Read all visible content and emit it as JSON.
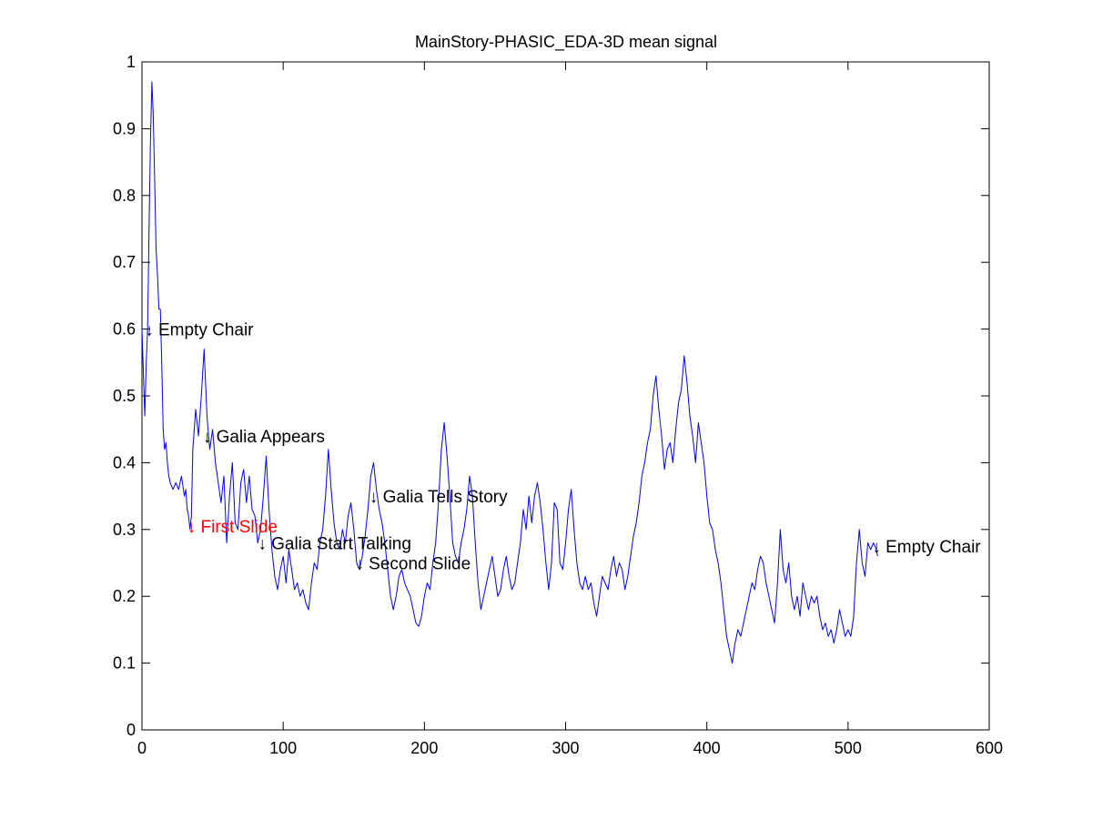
{
  "chart_data": {
    "type": "line",
    "title": "MainStory-PHASIC_EDA-3D mean signal",
    "xlabel": "",
    "ylabel": "",
    "xlim": [
      0,
      600
    ],
    "ylim": [
      0,
      1
    ],
    "xticks": [
      0,
      100,
      200,
      300,
      400,
      500,
      600
    ],
    "yticks": [
      0,
      0.1,
      0.2,
      0.3,
      0.4,
      0.5,
      0.6,
      0.7,
      0.8,
      0.9,
      1
    ],
    "xtick_labels": [
      "0",
      "100",
      "200",
      "300",
      "400",
      "500",
      "600"
    ],
    "ytick_labels": [
      "0",
      "0.1",
      "0.2",
      "0.3",
      "0.4",
      "0.5",
      "0.6",
      "0.7",
      "0.8",
      "0.9",
      "1"
    ],
    "grid": false,
    "series": [
      {
        "color": "#0000ff",
        "points": [
          [
            0,
            0.6
          ],
          [
            2,
            0.47
          ],
          [
            3,
            0.55
          ],
          [
            4,
            0.6
          ],
          [
            5,
            0.75
          ],
          [
            6,
            0.88
          ],
          [
            7,
            0.97
          ],
          [
            8,
            0.92
          ],
          [
            9,
            0.82
          ],
          [
            10,
            0.72
          ],
          [
            11,
            0.68
          ],
          [
            12,
            0.63
          ],
          [
            13,
            0.63
          ],
          [
            14,
            0.55
          ],
          [
            15,
            0.45
          ],
          [
            16,
            0.42
          ],
          [
            17,
            0.43
          ],
          [
            18,
            0.4
          ],
          [
            19,
            0.38
          ],
          [
            20,
            0.37
          ],
          [
            22,
            0.36
          ],
          [
            24,
            0.37
          ],
          [
            26,
            0.36
          ],
          [
            28,
            0.38
          ],
          [
            30,
            0.35
          ],
          [
            31,
            0.36
          ],
          [
            32,
            0.33
          ],
          [
            33,
            0.32
          ],
          [
            34,
            0.3
          ],
          [
            35,
            0.32
          ],
          [
            36,
            0.42
          ],
          [
            38,
            0.48
          ],
          [
            40,
            0.44
          ],
          [
            42,
            0.5
          ],
          [
            44,
            0.57
          ],
          [
            46,
            0.47
          ],
          [
            48,
            0.42
          ],
          [
            50,
            0.45
          ],
          [
            52,
            0.4
          ],
          [
            54,
            0.37
          ],
          [
            56,
            0.34
          ],
          [
            58,
            0.38
          ],
          [
            60,
            0.28
          ],
          [
            62,
            0.35
          ],
          [
            64,
            0.4
          ],
          [
            66,
            0.31
          ],
          [
            68,
            0.3
          ],
          [
            70,
            0.37
          ],
          [
            72,
            0.39
          ],
          [
            74,
            0.34
          ],
          [
            76,
            0.38
          ],
          [
            78,
            0.33
          ],
          [
            80,
            0.32
          ],
          [
            82,
            0.28
          ],
          [
            84,
            0.3
          ],
          [
            86,
            0.35
          ],
          [
            88,
            0.41
          ],
          [
            90,
            0.33
          ],
          [
            92,
            0.27
          ],
          [
            94,
            0.23
          ],
          [
            96,
            0.21
          ],
          [
            98,
            0.24
          ],
          [
            100,
            0.26
          ],
          [
            102,
            0.22
          ],
          [
            104,
            0.27
          ],
          [
            106,
            0.24
          ],
          [
            108,
            0.21
          ],
          [
            110,
            0.22
          ],
          [
            112,
            0.2
          ],
          [
            114,
            0.21
          ],
          [
            116,
            0.19
          ],
          [
            118,
            0.18
          ],
          [
            120,
            0.22
          ],
          [
            122,
            0.25
          ],
          [
            124,
            0.24
          ],
          [
            126,
            0.28
          ],
          [
            128,
            0.3
          ],
          [
            130,
            0.35
          ],
          [
            132,
            0.42
          ],
          [
            134,
            0.36
          ],
          [
            136,
            0.31
          ],
          [
            138,
            0.28
          ],
          [
            140,
            0.27
          ],
          [
            142,
            0.3
          ],
          [
            144,
            0.28
          ],
          [
            146,
            0.32
          ],
          [
            148,
            0.34
          ],
          [
            150,
            0.3
          ],
          [
            152,
            0.25
          ],
          [
            154,
            0.24
          ],
          [
            156,
            0.26
          ],
          [
            158,
            0.29
          ],
          [
            160,
            0.33
          ],
          [
            162,
            0.38
          ],
          [
            164,
            0.4
          ],
          [
            166,
            0.36
          ],
          [
            168,
            0.33
          ],
          [
            170,
            0.31
          ],
          [
            172,
            0.28
          ],
          [
            174,
            0.24
          ],
          [
            176,
            0.2
          ],
          [
            178,
            0.18
          ],
          [
            180,
            0.2
          ],
          [
            182,
            0.23
          ],
          [
            184,
            0.24
          ],
          [
            186,
            0.22
          ],
          [
            188,
            0.21
          ],
          [
            190,
            0.2
          ],
          [
            192,
            0.18
          ],
          [
            194,
            0.16
          ],
          [
            196,
            0.155
          ],
          [
            198,
            0.17
          ],
          [
            200,
            0.2
          ],
          [
            202,
            0.22
          ],
          [
            204,
            0.21
          ],
          [
            206,
            0.25
          ],
          [
            208,
            0.28
          ],
          [
            210,
            0.34
          ],
          [
            212,
            0.42
          ],
          [
            214,
            0.46
          ],
          [
            216,
            0.41
          ],
          [
            218,
            0.35
          ],
          [
            220,
            0.28
          ],
          [
            222,
            0.26
          ],
          [
            224,
            0.25
          ],
          [
            226,
            0.28
          ],
          [
            228,
            0.3
          ],
          [
            230,
            0.33
          ],
          [
            232,
            0.38
          ],
          [
            234,
            0.35
          ],
          [
            236,
            0.28
          ],
          [
            238,
            0.22
          ],
          [
            240,
            0.18
          ],
          [
            242,
            0.2
          ],
          [
            244,
            0.22
          ],
          [
            246,
            0.24
          ],
          [
            248,
            0.26
          ],
          [
            250,
            0.23
          ],
          [
            252,
            0.2
          ],
          [
            254,
            0.21
          ],
          [
            256,
            0.24
          ],
          [
            258,
            0.26
          ],
          [
            260,
            0.23
          ],
          [
            262,
            0.21
          ],
          [
            264,
            0.22
          ],
          [
            266,
            0.25
          ],
          [
            268,
            0.28
          ],
          [
            270,
            0.33
          ],
          [
            272,
            0.3
          ],
          [
            274,
            0.35
          ],
          [
            276,
            0.31
          ],
          [
            278,
            0.35
          ],
          [
            280,
            0.37
          ],
          [
            282,
            0.34
          ],
          [
            284,
            0.3
          ],
          [
            286,
            0.25
          ],
          [
            288,
            0.21
          ],
          [
            290,
            0.25
          ],
          [
            292,
            0.34
          ],
          [
            294,
            0.33
          ],
          [
            296,
            0.25
          ],
          [
            298,
            0.24
          ],
          [
            300,
            0.28
          ],
          [
            302,
            0.33
          ],
          [
            304,
            0.36
          ],
          [
            306,
            0.3
          ],
          [
            308,
            0.25
          ],
          [
            310,
            0.22
          ],
          [
            312,
            0.21
          ],
          [
            314,
            0.23
          ],
          [
            316,
            0.21
          ],
          [
            318,
            0.22
          ],
          [
            320,
            0.19
          ],
          [
            322,
            0.17
          ],
          [
            324,
            0.2
          ],
          [
            326,
            0.23
          ],
          [
            328,
            0.22
          ],
          [
            330,
            0.21
          ],
          [
            332,
            0.24
          ],
          [
            334,
            0.26
          ],
          [
            336,
            0.23
          ],
          [
            338,
            0.25
          ],
          [
            340,
            0.24
          ],
          [
            342,
            0.21
          ],
          [
            344,
            0.23
          ],
          [
            346,
            0.26
          ],
          [
            348,
            0.29
          ],
          [
            350,
            0.31
          ],
          [
            352,
            0.34
          ],
          [
            354,
            0.38
          ],
          [
            356,
            0.4
          ],
          [
            358,
            0.43
          ],
          [
            360,
            0.45
          ],
          [
            362,
            0.5
          ],
          [
            364,
            0.53
          ],
          [
            366,
            0.48
          ],
          [
            368,
            0.44
          ],
          [
            370,
            0.39
          ],
          [
            372,
            0.42
          ],
          [
            374,
            0.43
          ],
          [
            376,
            0.4
          ],
          [
            378,
            0.45
          ],
          [
            380,
            0.49
          ],
          [
            382,
            0.51
          ],
          [
            384,
            0.56
          ],
          [
            386,
            0.52
          ],
          [
            388,
            0.47
          ],
          [
            390,
            0.44
          ],
          [
            392,
            0.4
          ],
          [
            394,
            0.46
          ],
          [
            396,
            0.43
          ],
          [
            398,
            0.4
          ],
          [
            400,
            0.35
          ],
          [
            402,
            0.31
          ],
          [
            404,
            0.3
          ],
          [
            406,
            0.27
          ],
          [
            408,
            0.25
          ],
          [
            410,
            0.22
          ],
          [
            412,
            0.18
          ],
          [
            414,
            0.14
          ],
          [
            416,
            0.12
          ],
          [
            418,
            0.1
          ],
          [
            420,
            0.13
          ],
          [
            422,
            0.15
          ],
          [
            424,
            0.14
          ],
          [
            426,
            0.16
          ],
          [
            428,
            0.18
          ],
          [
            430,
            0.2
          ],
          [
            432,
            0.22
          ],
          [
            434,
            0.21
          ],
          [
            436,
            0.24
          ],
          [
            438,
            0.26
          ],
          [
            440,
            0.25
          ],
          [
            442,
            0.22
          ],
          [
            444,
            0.2
          ],
          [
            446,
            0.18
          ],
          [
            448,
            0.16
          ],
          [
            450,
            0.22
          ],
          [
            452,
            0.3
          ],
          [
            454,
            0.24
          ],
          [
            456,
            0.22
          ],
          [
            458,
            0.25
          ],
          [
            460,
            0.2
          ],
          [
            462,
            0.18
          ],
          [
            464,
            0.2
          ],
          [
            466,
            0.17
          ],
          [
            468,
            0.22
          ],
          [
            470,
            0.2
          ],
          [
            472,
            0.18
          ],
          [
            474,
            0.2
          ],
          [
            476,
            0.19
          ],
          [
            478,
            0.2
          ],
          [
            480,
            0.17
          ],
          [
            482,
            0.15
          ],
          [
            484,
            0.16
          ],
          [
            486,
            0.14
          ],
          [
            488,
            0.15
          ],
          [
            490,
            0.13
          ],
          [
            492,
            0.15
          ],
          [
            494,
            0.18
          ],
          [
            496,
            0.16
          ],
          [
            498,
            0.14
          ],
          [
            500,
            0.15
          ],
          [
            502,
            0.14
          ],
          [
            504,
            0.17
          ],
          [
            506,
            0.25
          ],
          [
            508,
            0.3
          ],
          [
            510,
            0.25
          ],
          [
            512,
            0.23
          ],
          [
            514,
            0.28
          ],
          [
            516,
            0.27
          ],
          [
            518,
            0.28
          ],
          [
            520,
            0.27
          ],
          [
            521,
            0.26
          ]
        ]
      }
    ],
    "annotations": [
      {
        "text": "↓ Empty Chair",
        "x": 4,
        "y": 0.6,
        "color": "#000000"
      },
      {
        "text": "↓ Galia Appears",
        "x": 45,
        "y": 0.44,
        "color": "#000000"
      },
      {
        "text": "↓ First Slide",
        "x": 34,
        "y": 0.305,
        "color": "#ff0000"
      },
      {
        "text": "↓ Galia Start Talking",
        "x": 84,
        "y": 0.28,
        "color": "#000000"
      },
      {
        "text": "↓ Galia Tells Story",
        "x": 163,
        "y": 0.35,
        "color": "#000000"
      },
      {
        "text": "↓ Second Slide",
        "x": 153,
        "y": 0.25,
        "color": "#000000"
      },
      {
        "text": "↓ Empty Chair",
        "x": 519,
        "y": 0.275,
        "color": "#000000"
      }
    ]
  }
}
